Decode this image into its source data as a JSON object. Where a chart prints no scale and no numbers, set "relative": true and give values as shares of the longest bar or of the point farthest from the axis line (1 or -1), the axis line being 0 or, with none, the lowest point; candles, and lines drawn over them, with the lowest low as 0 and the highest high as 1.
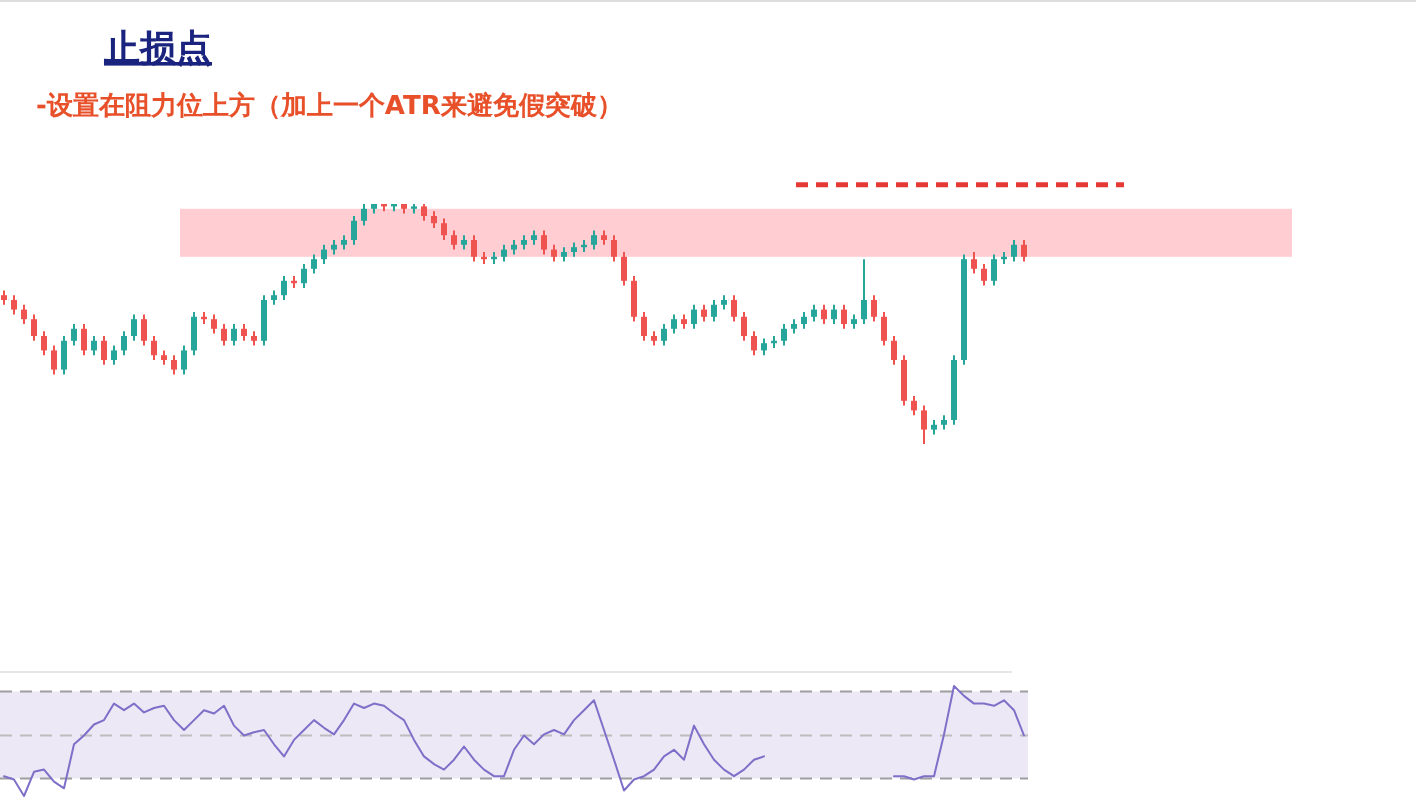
{
  "chart_data": [
    {
      "type": "candlestick",
      "title": "止损点",
      "subtitle": "-设置在阻力位上方（加上一个ATR来避免假突破）",
      "relative": true,
      "categories": [
        null,
        null,
        null,
        null,
        null,
        null,
        null,
        null,
        null,
        null,
        null,
        null,
        null,
        null,
        null,
        null,
        null,
        null,
        null,
        null,
        null,
        null,
        null,
        null,
        null,
        null,
        null,
        null,
        null,
        null,
        null,
        null,
        null,
        null,
        null,
        null,
        null,
        null,
        null,
        null,
        null,
        null,
        null,
        null,
        null,
        null,
        null,
        null,
        null,
        null,
        null,
        null,
        null,
        null,
        null,
        null,
        null,
        null,
        null,
        null,
        null,
        null,
        null,
        null,
        null,
        null,
        null,
        null,
        null,
        null,
        null,
        null,
        null,
        null,
        null,
        null,
        null,
        null,
        null,
        null,
        null,
        null,
        null,
        null,
        null,
        null,
        null,
        null,
        null,
        null,
        null,
        null,
        null,
        null,
        null,
        null,
        null,
        null,
        null,
        null,
        null,
        null,
        null
      ],
      "ohlc": [
        [
          0.62,
          0.64,
          0.58,
          0.6
        ],
        [
          0.6,
          0.62,
          0.54,
          0.56
        ],
        [
          0.56,
          0.58,
          0.5,
          0.52
        ],
        [
          0.52,
          0.54,
          0.43,
          0.45
        ],
        [
          0.45,
          0.47,
          0.37,
          0.39
        ],
        [
          0.39,
          0.41,
          0.29,
          0.31
        ],
        [
          0.31,
          0.45,
          0.29,
          0.43
        ],
        [
          0.43,
          0.5,
          0.41,
          0.48
        ],
        [
          0.48,
          0.5,
          0.37,
          0.39
        ],
        [
          0.39,
          0.45,
          0.37,
          0.43
        ],
        [
          0.43,
          0.45,
          0.33,
          0.35
        ],
        [
          0.35,
          0.41,
          0.33,
          0.39
        ],
        [
          0.39,
          0.47,
          0.37,
          0.45
        ],
        [
          0.45,
          0.54,
          0.43,
          0.52
        ],
        [
          0.52,
          0.54,
          0.41,
          0.43
        ],
        [
          0.43,
          0.45,
          0.35,
          0.37
        ],
        [
          0.37,
          0.39,
          0.33,
          0.35
        ],
        [
          0.35,
          0.37,
          0.29,
          0.31
        ],
        [
          0.31,
          0.41,
          0.29,
          0.39
        ],
        [
          0.39,
          0.55,
          0.37,
          0.53
        ],
        [
          0.53,
          0.55,
          0.5,
          0.52
        ],
        [
          0.52,
          0.54,
          0.46,
          0.48
        ],
        [
          0.48,
          0.5,
          0.41,
          0.43
        ],
        [
          0.43,
          0.5,
          0.41,
          0.48
        ],
        [
          0.48,
          0.5,
          0.43,
          0.45
        ],
        [
          0.45,
          0.47,
          0.41,
          0.43
        ],
        [
          0.43,
          0.62,
          0.41,
          0.6
        ],
        [
          0.6,
          0.64,
          0.58,
          0.62
        ],
        [
          0.62,
          0.7,
          0.6,
          0.68
        ],
        [
          0.68,
          0.7,
          0.65,
          0.67
        ],
        [
          0.67,
          0.75,
          0.65,
          0.73
        ],
        [
          0.73,
          0.79,
          0.71,
          0.77
        ],
        [
          0.77,
          0.83,
          0.75,
          0.81
        ],
        [
          0.81,
          0.85,
          0.79,
          0.83
        ],
        [
          0.83,
          0.87,
          0.81,
          0.85
        ],
        [
          0.85,
          0.95,
          0.83,
          0.93
        ],
        [
          0.93,
          1.0,
          0.91,
          0.98
        ],
        [
          0.98,
          1.0,
          0.96,
          1.0
        ],
        [
          1.0,
          1.0,
          0.97,
          0.99
        ],
        [
          0.99,
          1.0,
          0.97,
          1.0
        ],
        [
          1.0,
          1.0,
          0.96,
          0.98
        ],
        [
          0.98,
          1.0,
          0.96,
          0.99
        ],
        [
          0.99,
          1.0,
          0.93,
          0.95
        ],
        [
          0.95,
          0.97,
          0.9,
          0.92
        ],
        [
          0.92,
          0.94,
          0.85,
          0.87
        ],
        [
          0.87,
          0.89,
          0.81,
          0.83
        ],
        [
          0.83,
          0.87,
          0.81,
          0.85
        ],
        [
          0.85,
          0.87,
          0.76,
          0.78
        ],
        [
          0.78,
          0.8,
          0.75,
          0.77
        ],
        [
          0.77,
          0.8,
          0.75,
          0.78
        ],
        [
          0.78,
          0.83,
          0.76,
          0.81
        ],
        [
          0.81,
          0.85,
          0.79,
          0.83
        ],
        [
          0.83,
          0.87,
          0.81,
          0.85
        ],
        [
          0.85,
          0.89,
          0.83,
          0.87
        ],
        [
          0.87,
          0.89,
          0.79,
          0.81
        ],
        [
          0.81,
          0.83,
          0.76,
          0.78
        ],
        [
          0.78,
          0.82,
          0.76,
          0.8
        ],
        [
          0.8,
          0.84,
          0.78,
          0.82
        ],
        [
          0.82,
          0.85,
          0.8,
          0.83
        ],
        [
          0.83,
          0.89,
          0.81,
          0.87
        ],
        [
          0.87,
          0.89,
          0.83,
          0.85
        ],
        [
          0.85,
          0.87,
          0.76,
          0.78
        ],
        [
          0.78,
          0.8,
          0.66,
          0.68
        ],
        [
          0.68,
          0.7,
          0.51,
          0.53
        ],
        [
          0.53,
          0.55,
          0.43,
          0.45
        ],
        [
          0.45,
          0.47,
          0.41,
          0.43
        ],
        [
          0.43,
          0.5,
          0.41,
          0.48
        ],
        [
          0.48,
          0.54,
          0.46,
          0.52
        ],
        [
          0.52,
          0.54,
          0.48,
          0.5
        ],
        [
          0.5,
          0.58,
          0.48,
          0.56
        ],
        [
          0.56,
          0.58,
          0.51,
          0.53
        ],
        [
          0.53,
          0.6,
          0.51,
          0.58
        ],
        [
          0.58,
          0.62,
          0.56,
          0.6
        ],
        [
          0.6,
          0.62,
          0.51,
          0.53
        ],
        [
          0.53,
          0.55,
          0.43,
          0.45
        ],
        [
          0.45,
          0.47,
          0.37,
          0.39
        ],
        [
          0.39,
          0.44,
          0.37,
          0.42
        ],
        [
          0.42,
          0.45,
          0.4,
          0.43
        ],
        [
          0.43,
          0.5,
          0.41,
          0.48
        ],
        [
          0.48,
          0.52,
          0.46,
          0.5
        ],
        [
          0.5,
          0.55,
          0.48,
          0.53
        ],
        [
          0.53,
          0.58,
          0.51,
          0.56
        ],
        [
          0.56,
          0.58,
          0.5,
          0.52
        ],
        [
          0.52,
          0.58,
          0.5,
          0.56
        ],
        [
          0.56,
          0.58,
          0.48,
          0.5
        ],
        [
          0.5,
          0.54,
          0.48,
          0.52
        ],
        [
          0.52,
          0.77,
          0.5,
          0.6
        ],
        [
          0.6,
          0.62,
          0.51,
          0.53
        ],
        [
          0.53,
          0.55,
          0.41,
          0.43
        ],
        [
          0.43,
          0.45,
          0.33,
          0.35
        ],
        [
          0.35,
          0.37,
          0.16,
          0.18
        ],
        [
          0.18,
          0.2,
          0.12,
          0.14
        ],
        [
          0.14,
          0.16,
          0.0,
          0.06
        ],
        [
          0.06,
          0.1,
          0.04,
          0.08
        ],
        [
          0.08,
          0.12,
          0.06,
          0.1
        ],
        [
          0.1,
          0.37,
          0.08,
          0.35
        ],
        [
          0.35,
          0.79,
          0.33,
          0.77
        ],
        [
          0.77,
          0.8,
          0.71,
          0.73
        ],
        [
          0.73,
          0.75,
          0.66,
          0.68
        ],
        [
          0.68,
          0.79,
          0.66,
          0.77
        ],
        [
          0.77,
          0.8,
          0.75,
          0.78
        ],
        [
          0.78,
          0.85,
          0.76,
          0.83
        ],
        [
          0.83,
          0.85,
          0.76,
          0.78
        ]
      ],
      "bands": [
        {
          "axis": "y",
          "from": 0.78,
          "to": 0.98,
          "color": "#ffcdd2"
        }
      ],
      "ref_lines": [
        {
          "axis": "y",
          "value": 1.08,
          "color": "#e53935",
          "line_style": "dashed"
        }
      ]
    },
    {
      "type": "line",
      "relative": true,
      "categories": [
        null,
        null,
        null,
        null,
        null,
        null,
        null,
        null,
        null,
        null,
        null,
        null,
        null,
        null,
        null,
        null,
        null,
        null,
        null,
        null,
        null,
        null,
        null,
        null,
        null,
        null,
        null,
        null,
        null,
        null,
        null,
        null,
        null,
        null,
        null,
        null,
        null,
        null,
        null,
        null,
        null,
        null,
        null,
        null,
        null,
        null,
        null,
        null,
        null,
        null,
        null,
        null,
        null,
        null,
        null,
        null,
        null,
        null,
        null,
        null,
        null,
        null,
        null,
        null,
        null,
        null,
        null,
        null,
        null,
        null,
        null,
        null,
        null,
        null,
        null,
        null,
        null,
        null,
        null,
        null,
        null,
        null,
        null,
        null,
        null,
        null,
        null,
        null,
        null,
        null,
        null,
        null,
        null,
        null,
        null,
        null,
        null,
        null,
        null,
        null,
        null,
        null,
        null
      ],
      "series": [
        {
          "color": "#7e6fc8",
          "values": [
            0.18,
            0.15,
            0,
            0.22,
            0.24,
            0.13,
            0.07,
            0.47,
            0.55,
            0.65,
            0.69,
            0.84,
            0.78,
            0.84,
            0.76,
            0.8,
            0.82,
            0.69,
            0.6,
            0.69,
            0.78,
            0.75,
            0.82,
            0.64,
            0.55,
            0.58,
            0.6,
            0.47,
            0.36,
            0.51,
            0.6,
            0.69,
            0.62,
            0.56,
            0.69,
            0.84,
            0.8,
            0.84,
            0.82,
            0.75,
            0.69,
            0.51,
            0.36,
            0.29,
            0.24,
            0.33,
            0.45,
            0.33,
            0.24,
            0.18,
            0.18,
            0.42,
            0.55,
            0.47,
            0.56,
            0.6,
            0.56,
            0.69,
            0.78,
            0.87,
            0.6,
            0.33,
            0.05,
            0.15,
            0.18,
            0.24,
            0.36,
            0.42,
            0.33,
            0.64,
            0.47,
            0.33,
            0.24,
            0.18,
            0.24,
            0.33,
            0.36,
            null,
            null,
            null,
            null,
            null,
            null,
            null,
            null,
            null,
            null,
            null,
            null,
            0.18,
            0.18,
            0.15,
            0.18,
            0.18,
            0.56,
            1.0,
            0.91,
            0.84,
            0.84,
            0.82,
            0.87,
            0.78,
            0.55
          ]
        }
      ],
      "bands": [
        {
          "axis": "y",
          "from": 0.16,
          "to": 0.95,
          "color": "#ece8f6"
        }
      ],
      "ref_lines": [
        {
          "axis": "y",
          "value": 0.95,
          "color": "#9e9e9e",
          "line_style": "dashed"
        },
        {
          "axis": "y",
          "value": 0.55,
          "color": "#bdbdbd",
          "line_style": "dashed"
        },
        {
          "axis": "y",
          "value": 0.16,
          "color": "#9e9e9e",
          "line_style": "dashed"
        }
      ]
    }
  ]
}
